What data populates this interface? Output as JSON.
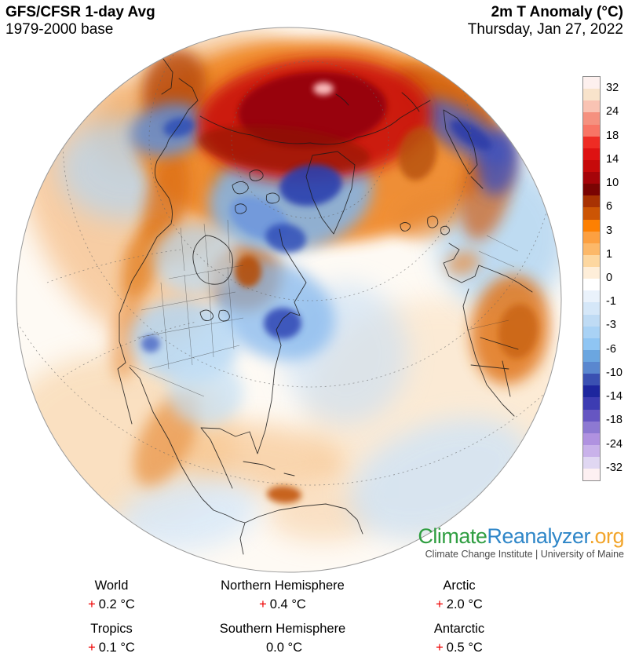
{
  "header": {
    "title_left": "GFS/CFSR 1-day Avg",
    "subtitle_left": "1979-2000 base",
    "title_right": "2m T Anomaly (°C)",
    "subtitle_right": "Thursday, Jan 27, 2022"
  },
  "colorbar": {
    "unit": "°C",
    "labels": [
      "32",
      "24",
      "18",
      "14",
      "10",
      "6",
      "3",
      "1",
      "0",
      "-1",
      "-3",
      "-6",
      "-10",
      "-14",
      "-18",
      "-24",
      "-32"
    ],
    "colors": [
      "#fdf0ee",
      "#f8e3cb",
      "#f9c3b3",
      "#f5917f",
      "#f87565",
      "#ee2c24",
      "#de1212",
      "#c60a0a",
      "#a50409",
      "#7a0403",
      "#a83203",
      "#cc5504",
      "#fd8002",
      "#fca041",
      "#fcb869",
      "#fdd7a0",
      "#feeed9",
      "#ffffff",
      "#eaf2fb",
      "#d5e7f8",
      "#bfdbf4",
      "#a9d2f5",
      "#8fc5f3",
      "#6ba6e0",
      "#5a87cf",
      "#3a50b2",
      "#1d269e",
      "#3d3cb2",
      "#6656c2",
      "#8d79d2",
      "#b092e0",
      "#c9b2ea",
      "#e0d7f2",
      "#fdf0f2"
    ]
  },
  "logo": {
    "part1": "Climate",
    "part2": "Reanalyzer",
    "part3": ".org",
    "tagline": "Climate Change Institute | University of Maine",
    "colors": {
      "part1": "#2f9e41",
      "part2": "#2e86c8",
      "part3": "#f2a52b",
      "tagline": "#4a4a4a"
    }
  },
  "stats": {
    "plus_color": "#ee0000",
    "rows": [
      [
        {
          "label": "World",
          "sign": "+",
          "value": "0.2 °C"
        },
        {
          "label": "Northern Hemisphere",
          "sign": "+",
          "value": "0.4 °C"
        },
        {
          "label": "Arctic",
          "sign": "+",
          "value": "2.0 °C"
        }
      ],
      [
        {
          "label": "Tropics",
          "sign": "+",
          "value": "0.1 °C"
        },
        {
          "label": "Southern Hemisphere",
          "sign": "",
          "value": "0.0 °C"
        },
        {
          "label": "Antarctic",
          "sign": "+",
          "value": "0.5 °C"
        }
      ]
    ]
  }
}
